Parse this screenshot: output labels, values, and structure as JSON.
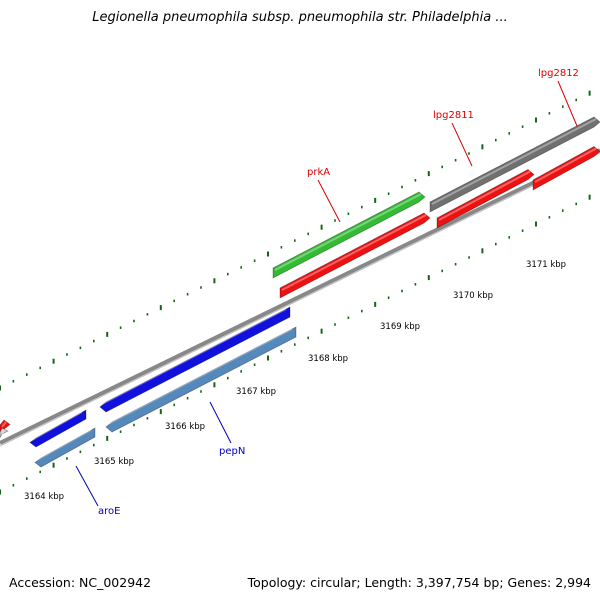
{
  "title": "Legionella pneumophila subsp. pneumophila str. Philadelphia ...",
  "footer": {
    "accession": "Accession: NC_002942",
    "stats": "Topology: circular; Length: 3,397,754 bp; Genes: 2,994"
  },
  "colors": {
    "forward_cds": "#ee1111",
    "reverse_cds_dark": "#1111dd",
    "reverse_cds_light": "#5588bb",
    "green_cds": "#33bb33",
    "gray_cds": "#707070",
    "backbone": "#888888",
    "tick": "#116611",
    "forward_label": "#dd0000",
    "reverse_label": "#0000bb"
  },
  "tick_labels": [
    {
      "text": "3164 kbp",
      "kbp": 3164
    },
    {
      "text": "3165 kbp",
      "kbp": 3165
    },
    {
      "text": "3166 kbp",
      "kbp": 3166
    },
    {
      "text": "3167 kbp",
      "kbp": 3167
    },
    {
      "text": "3168 kbp",
      "kbp": 3168
    },
    {
      "text": "3169 kbp",
      "kbp": 3169
    },
    {
      "text": "3170 kbp",
      "kbp": 3170
    },
    {
      "text": "3171 kbp",
      "kbp": 3171
    }
  ],
  "gene_labels": [
    {
      "text": "prkA",
      "strand": "forward"
    },
    {
      "text": "lpg2811",
      "strand": "forward"
    },
    {
      "text": "lpg2812",
      "strand": "forward"
    },
    {
      "text": "pepN",
      "strand": "reverse"
    },
    {
      "text": "aroE",
      "strand": "reverse"
    }
  ]
}
